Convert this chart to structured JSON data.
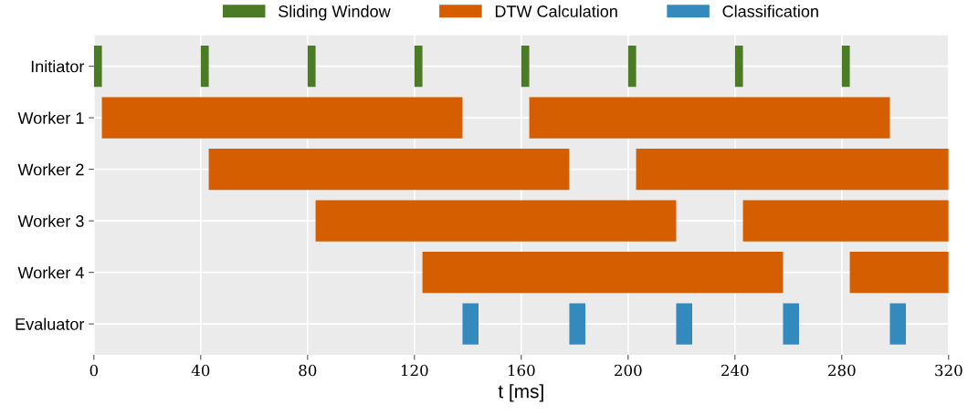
{
  "chart_data": {
    "type": "bar",
    "orientation": "horizontal",
    "xlabel": "t [ms]",
    "categories": [
      "Initiator",
      "Worker 1",
      "Worker 2",
      "Worker 3",
      "Worker 4",
      "Evaluator"
    ],
    "series": [
      {
        "name": "Sliding Window",
        "color": "#4b7b25",
        "base": [
          0,
          null,
          null,
          null,
          null,
          null
        ],
        "values": [
          3,
          null,
          null,
          null,
          null,
          null
        ]
      },
      {
        "color": "#4b7b25",
        "base": [
          40,
          null,
          null,
          null,
          null,
          null
        ],
        "values": [
          3,
          null,
          null,
          null,
          null,
          null
        ]
      },
      {
        "color": "#4b7b25",
        "base": [
          80,
          null,
          null,
          null,
          null,
          null
        ],
        "values": [
          3,
          null,
          null,
          null,
          null,
          null
        ]
      },
      {
        "color": "#4b7b25",
        "base": [
          120,
          null,
          null,
          null,
          null,
          null
        ],
        "values": [
          3,
          null,
          null,
          null,
          null,
          null
        ]
      },
      {
        "color": "#4b7b25",
        "base": [
          160,
          null,
          null,
          null,
          null,
          null
        ],
        "values": [
          3,
          null,
          null,
          null,
          null,
          null
        ]
      },
      {
        "color": "#4b7b25",
        "base": [
          200,
          null,
          null,
          null,
          null,
          null
        ],
        "values": [
          3,
          null,
          null,
          null,
          null,
          null
        ]
      },
      {
        "color": "#4b7b25",
        "base": [
          240,
          null,
          null,
          null,
          null,
          null
        ],
        "values": [
          3,
          null,
          null,
          null,
          null,
          null
        ]
      },
      {
        "color": "#4b7b25",
        "base": [
          280,
          null,
          null,
          null,
          null,
          null
        ],
        "values": [
          3,
          null,
          null,
          null,
          null,
          null
        ]
      },
      {
        "name": "DTW Calculation",
        "color": "#d55e00",
        "base": [
          null,
          3,
          43,
          83,
          123,
          null
        ],
        "values": [
          null,
          135,
          135,
          135,
          135,
          null
        ]
      },
      {
        "color": "#d55e00",
        "base": [
          null,
          163,
          203,
          243,
          283,
          null
        ],
        "values": [
          null,
          135,
          117,
          77,
          37,
          null
        ]
      },
      {
        "name": "Classification",
        "color": "#348abd",
        "base": [
          null,
          null,
          null,
          null,
          null,
          138
        ],
        "values": [
          null,
          null,
          null,
          null,
          null,
          6
        ]
      },
      {
        "color": "#348abd",
        "base": [
          null,
          null,
          null,
          null,
          null,
          178
        ],
        "values": [
          null,
          null,
          null,
          null,
          null,
          6
        ]
      },
      {
        "color": "#348abd",
        "base": [
          null,
          null,
          null,
          null,
          null,
          218
        ],
        "values": [
          null,
          null,
          null,
          null,
          null,
          6
        ]
      },
      {
        "color": "#348abd",
        "base": [
          null,
          null,
          null,
          null,
          null,
          258
        ],
        "values": [
          null,
          null,
          null,
          null,
          null,
          6
        ]
      },
      {
        "color": "#348abd",
        "base": [
          null,
          null,
          null,
          null,
          null,
          298
        ],
        "values": [
          null,
          null,
          null,
          null,
          null,
          6
        ]
      }
    ],
    "xlim": [
      0,
      320
    ],
    "xticks": [
      0,
      40,
      80,
      120,
      160,
      200,
      240,
      280,
      320
    ],
    "grid": true,
    "legend": "top"
  }
}
